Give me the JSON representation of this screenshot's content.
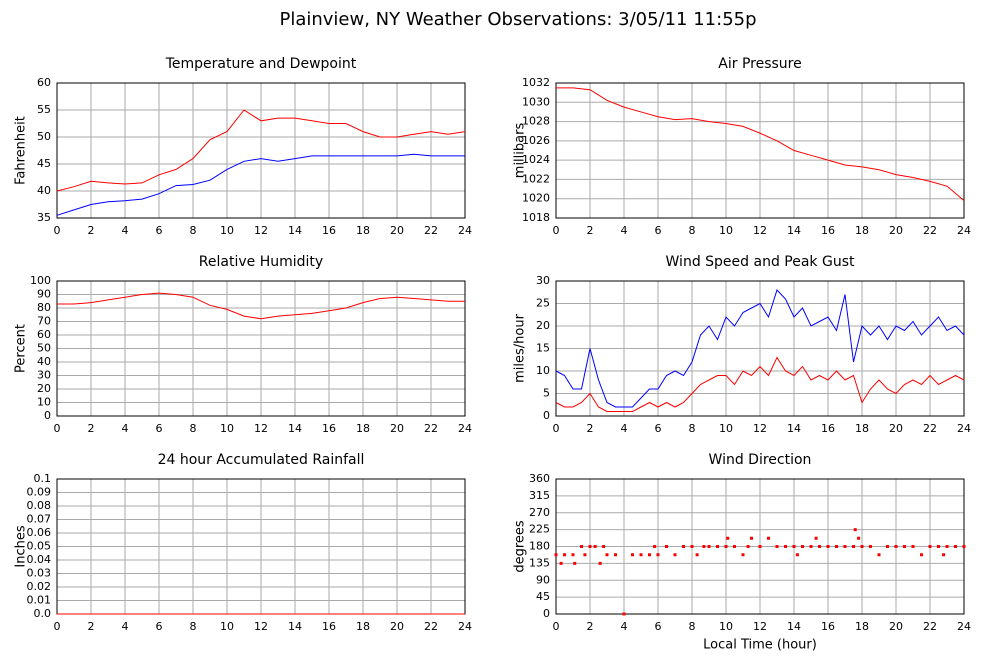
{
  "title": "Plainview, NY Weather Observations: 3/05/11 11:55p",
  "chart_data": [
    {
      "type": "line",
      "title": "Temperature and Dewpoint",
      "y_label": "Fahrenheit",
      "x": [
        0,
        1,
        2,
        3,
        4,
        5,
        6,
        7,
        8,
        9,
        10,
        11,
        12,
        13,
        14,
        15,
        16,
        17,
        18,
        19,
        20,
        21,
        22,
        23,
        24
      ],
      "series": [
        {
          "color": "#ff0000",
          "values": [
            40,
            40.8,
            41.8,
            41.5,
            41.3,
            41.5,
            43,
            44,
            46,
            49.5,
            51,
            55,
            53,
            53.5,
            53.5,
            53,
            52.5,
            52.5,
            51,
            50,
            50,
            50.5,
            51,
            50.5,
            51
          ]
        },
        {
          "color": "#0000ff",
          "values": [
            35.5,
            36.5,
            37.5,
            38,
            38.2,
            38.5,
            39.5,
            41,
            41.2,
            42,
            44,
            45.5,
            46,
            45.5,
            46,
            46.5,
            46.5,
            46.5,
            46.5,
            46.5,
            46.5,
            46.8,
            46.5,
            46.5,
            46.5
          ]
        }
      ],
      "xlim": [
        0,
        24
      ],
      "xticks": [
        0,
        2,
        4,
        6,
        8,
        10,
        12,
        14,
        16,
        18,
        20,
        22,
        24
      ],
      "ylim": [
        35,
        60
      ],
      "yticks": [
        35,
        40,
        45,
        50,
        55,
        60
      ],
      "grid": true
    },
    {
      "type": "line",
      "title": "Air Pressure",
      "y_label": "millibars",
      "x": [
        0,
        1,
        2,
        3,
        4,
        5,
        6,
        7,
        8,
        9,
        10,
        11,
        12,
        13,
        14,
        15,
        16,
        17,
        18,
        19,
        20,
        21,
        22,
        23,
        24
      ],
      "series": [
        {
          "color": "#ff0000",
          "values": [
            1031.5,
            1031.5,
            1031.3,
            1030.2,
            1029.5,
            1029,
            1028.5,
            1028.2,
            1028.3,
            1028,
            1027.8,
            1027.5,
            1026.8,
            1026,
            1025,
            1024.5,
            1024,
            1023.5,
            1023.3,
            1023,
            1022.5,
            1022.2,
            1021.8,
            1021.3,
            1019.8
          ]
        }
      ],
      "xlim": [
        0,
        24
      ],
      "xticks": [
        0,
        2,
        4,
        6,
        8,
        10,
        12,
        14,
        16,
        18,
        20,
        22,
        24
      ],
      "ylim": [
        1018,
        1032
      ],
      "yticks": [
        1018,
        1020,
        1022,
        1024,
        1026,
        1028,
        1030,
        1032
      ],
      "grid": true
    },
    {
      "type": "line",
      "title": "Relative Humidity",
      "y_label": "Percent",
      "x": [
        0,
        1,
        2,
        3,
        4,
        5,
        6,
        7,
        8,
        9,
        10,
        11,
        12,
        13,
        14,
        15,
        16,
        17,
        18,
        19,
        20,
        21,
        22,
        23,
        24
      ],
      "series": [
        {
          "color": "#ff0000",
          "values": [
            83,
            83,
            84,
            86,
            88,
            90,
            91,
            90,
            88,
            82,
            79,
            74,
            72,
            74,
            75,
            76,
            78,
            80,
            84,
            87,
            88,
            87,
            86,
            85,
            85
          ]
        }
      ],
      "xlim": [
        0,
        24
      ],
      "xticks": [
        0,
        2,
        4,
        6,
        8,
        10,
        12,
        14,
        16,
        18,
        20,
        22,
        24
      ],
      "ylim": [
        0,
        100
      ],
      "yticks": [
        0,
        10,
        20,
        30,
        40,
        50,
        60,
        70,
        80,
        90,
        100
      ],
      "grid": true
    },
    {
      "type": "line",
      "title": "Wind Speed and Peak Gust",
      "y_label": "miles/hour",
      "x": [
        0,
        0.5,
        1,
        1.5,
        2,
        2.5,
        3,
        3.5,
        4,
        4.5,
        5,
        5.5,
        6,
        6.5,
        7,
        7.5,
        8,
        8.5,
        9,
        9.5,
        10,
        10.5,
        11,
        11.5,
        12,
        12.5,
        13,
        13.5,
        14,
        14.5,
        15,
        15.5,
        16,
        16.5,
        17,
        17.5,
        18,
        18.5,
        19,
        19.5,
        20,
        20.5,
        21,
        21.5,
        22,
        22.5,
        23,
        23.5,
        24
      ],
      "series": [
        {
          "color": "#0000ff",
          "values": [
            10,
            9,
            6,
            6,
            15,
            8,
            3,
            2,
            2,
            2,
            4,
            6,
            6,
            9,
            10,
            9,
            12,
            18,
            20,
            17,
            22,
            20,
            23,
            24,
            25,
            22,
            28,
            26,
            22,
            24,
            20,
            21,
            22,
            19,
            27,
            12,
            20,
            18,
            20,
            17,
            20,
            19,
            21,
            18,
            20,
            22,
            19,
            20,
            18
          ]
        },
        {
          "color": "#ff0000",
          "values": [
            3,
            2,
            2,
            3,
            5,
            2,
            1,
            1,
            1,
            1,
            2,
            3,
            2,
            3,
            2,
            3,
            5,
            7,
            8,
            9,
            9,
            7,
            10,
            9,
            11,
            9,
            13,
            10,
            9,
            11,
            8,
            9,
            8,
            10,
            8,
            9,
            3,
            6,
            8,
            6,
            5,
            7,
            8,
            7,
            9,
            7,
            8,
            9,
            8
          ]
        }
      ],
      "xlim": [
        0,
        24
      ],
      "xticks": [
        0,
        2,
        4,
        6,
        8,
        10,
        12,
        14,
        16,
        18,
        20,
        22,
        24
      ],
      "ylim": [
        0,
        30
      ],
      "yticks": [
        0,
        5,
        10,
        15,
        20,
        25,
        30
      ],
      "grid": true
    },
    {
      "type": "line",
      "title": "24 hour Accumulated Rainfall",
      "y_label": "Inches",
      "x": [
        0,
        24
      ],
      "series": [
        {
          "color": "#ff0000",
          "values": [
            0,
            0
          ]
        }
      ],
      "xlim": [
        0,
        24
      ],
      "xticks": [
        0,
        2,
        4,
        6,
        8,
        10,
        12,
        14,
        16,
        18,
        20,
        22,
        24
      ],
      "ylim": [
        0,
        0.1
      ],
      "yticks": [
        {
          "value": 0,
          "label": "0.0"
        },
        0.01,
        0.02,
        0.03,
        0.04,
        0.05,
        0.06,
        0.07,
        0.08,
        0.09,
        0.1
      ],
      "grid": true
    },
    {
      "type": "scatter",
      "title": "Wind Direction",
      "y_label": "degrees",
      "x_label": "Local Time (hour)",
      "x": [
        0,
        0.3,
        0.5,
        1,
        1.1,
        1.5,
        1.7,
        2,
        2.3,
        2.6,
        2.8,
        3,
        3.5,
        4,
        4.5,
        5,
        5.5,
        5.8,
        6,
        6.5,
        7,
        7.5,
        8,
        8.3,
        8.7,
        9,
        9.5,
        10,
        10.1,
        10.5,
        11,
        11.3,
        11.5,
        12,
        12.5,
        13,
        13.5,
        14,
        14.2,
        14.5,
        15,
        15.3,
        15.5,
        16,
        16.5,
        17,
        17.5,
        17.6,
        17.8,
        18,
        18.5,
        19,
        19.5,
        20,
        20.5,
        21,
        21.5,
        22,
        22.5,
        22.8,
        23,
        23.5,
        24
      ],
      "series": [
        {
          "color": "#ff0000",
          "values": [
            158,
            135,
            158,
            158,
            135,
            180,
            158,
            180,
            180,
            135,
            180,
            158,
            158,
            0,
            158,
            158,
            158,
            180,
            158,
            180,
            158,
            180,
            180,
            158,
            180,
            180,
            180,
            180,
            202,
            180,
            158,
            180,
            202,
            180,
            202,
            180,
            180,
            180,
            158,
            180,
            180,
            202,
            180,
            180,
            180,
            180,
            180,
            225,
            202,
            180,
            180,
            158,
            180,
            180,
            180,
            180,
            158,
            180,
            180,
            158,
            180,
            180,
            180
          ]
        }
      ],
      "xlim": [
        0,
        24
      ],
      "xticks": [
        0,
        2,
        4,
        6,
        8,
        10,
        12,
        14,
        16,
        18,
        20,
        22,
        24
      ],
      "ylim": [
        0,
        360
      ],
      "yticks": [
        0,
        45,
        90,
        135,
        180,
        225,
        270,
        315,
        360
      ],
      "grid": true
    }
  ]
}
